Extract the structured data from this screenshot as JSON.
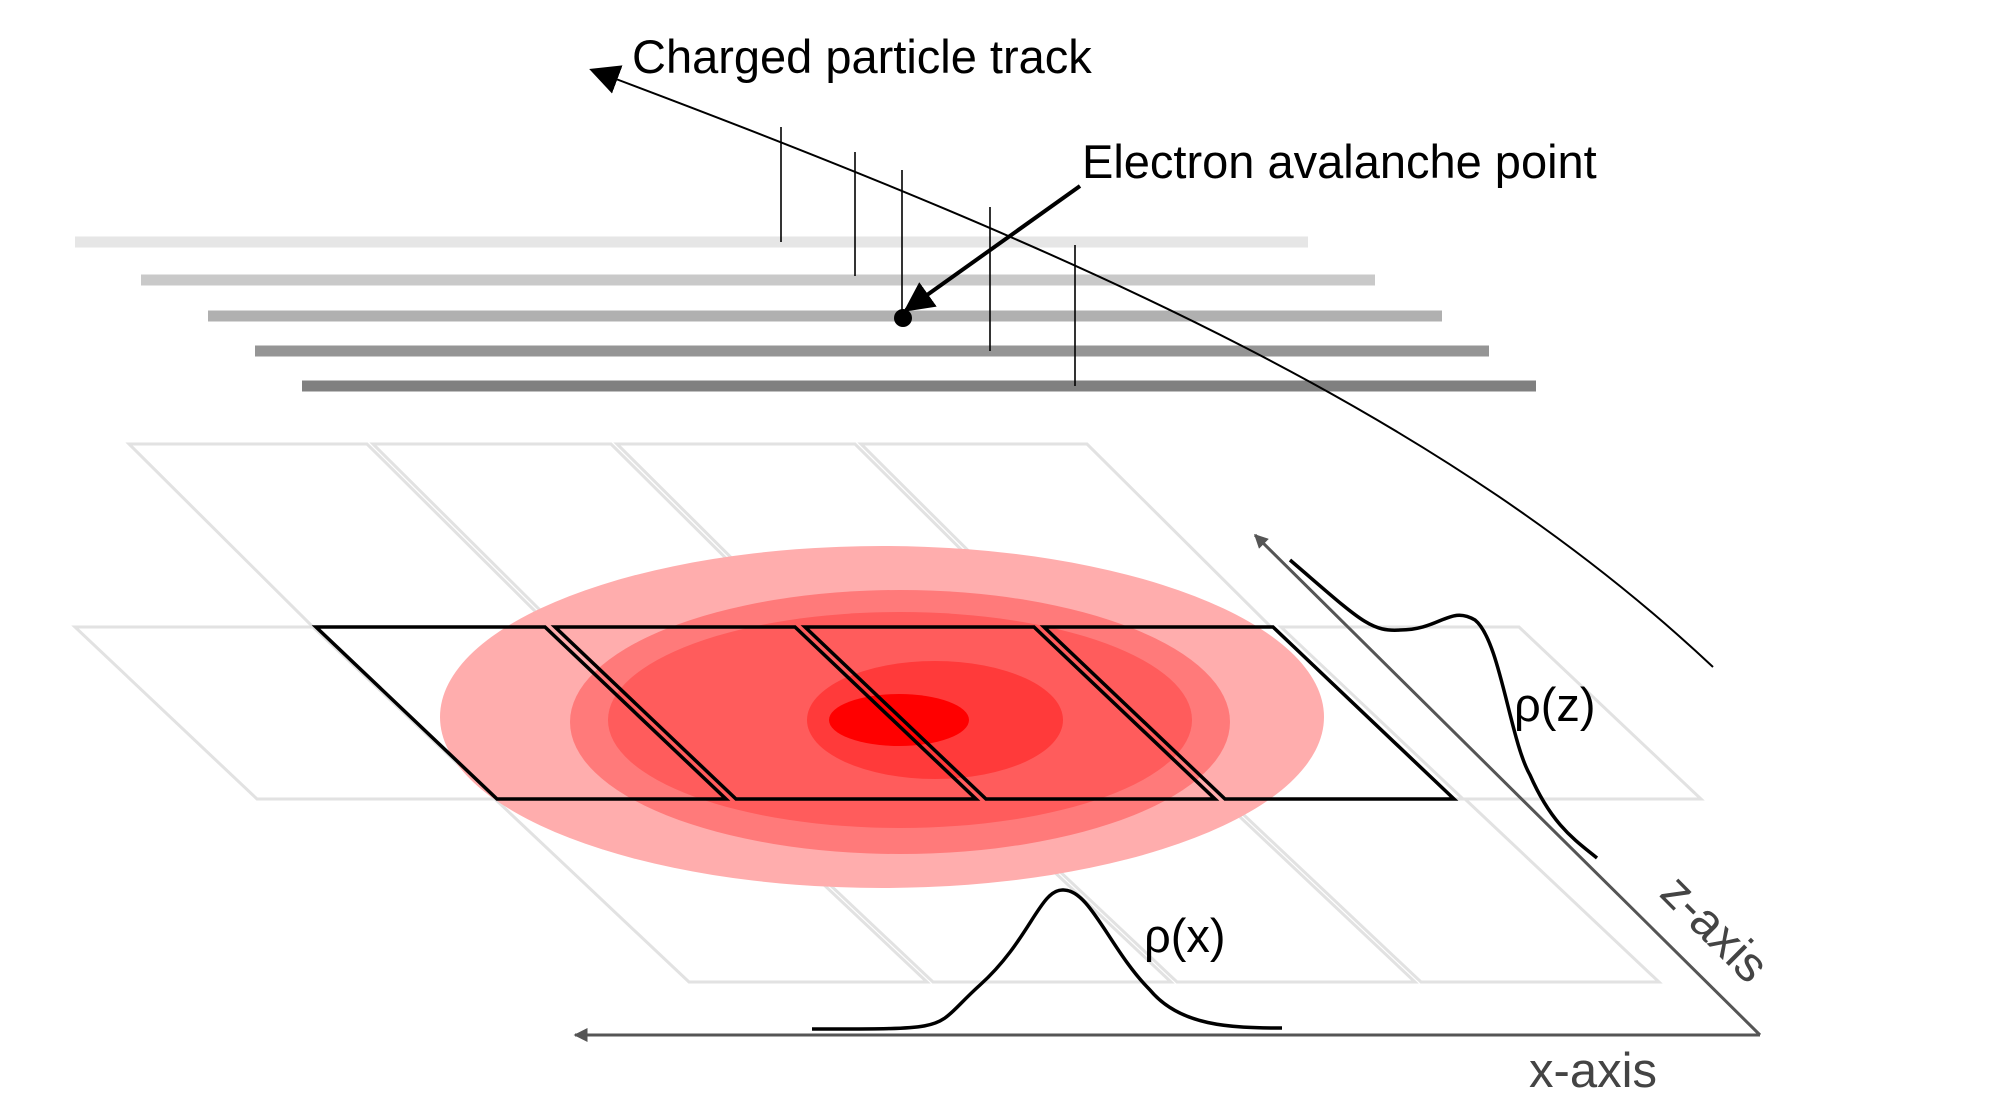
{
  "labels": {
    "track": "Charged particle track",
    "avalanche": "Electron avalanche point",
    "rho_z": "ρ(z)",
    "rho_x": "ρ(x)",
    "z_axis": "z-axis",
    "x_axis": "x-axis"
  },
  "colors": {
    "wire_layers": [
      "#e6e6e6",
      "#c9c9c9",
      "#b0b0b0",
      "#959595",
      "#808080"
    ],
    "charge_cloud": [
      "#ffadad",
      "#ff7a7a",
      "#ff5c5c",
      "#ff3a3a",
      "#ff0000"
    ],
    "pad_grid": "#e2e2e2",
    "highlighted_pads": "#000000",
    "axes": "#555555"
  }
}
